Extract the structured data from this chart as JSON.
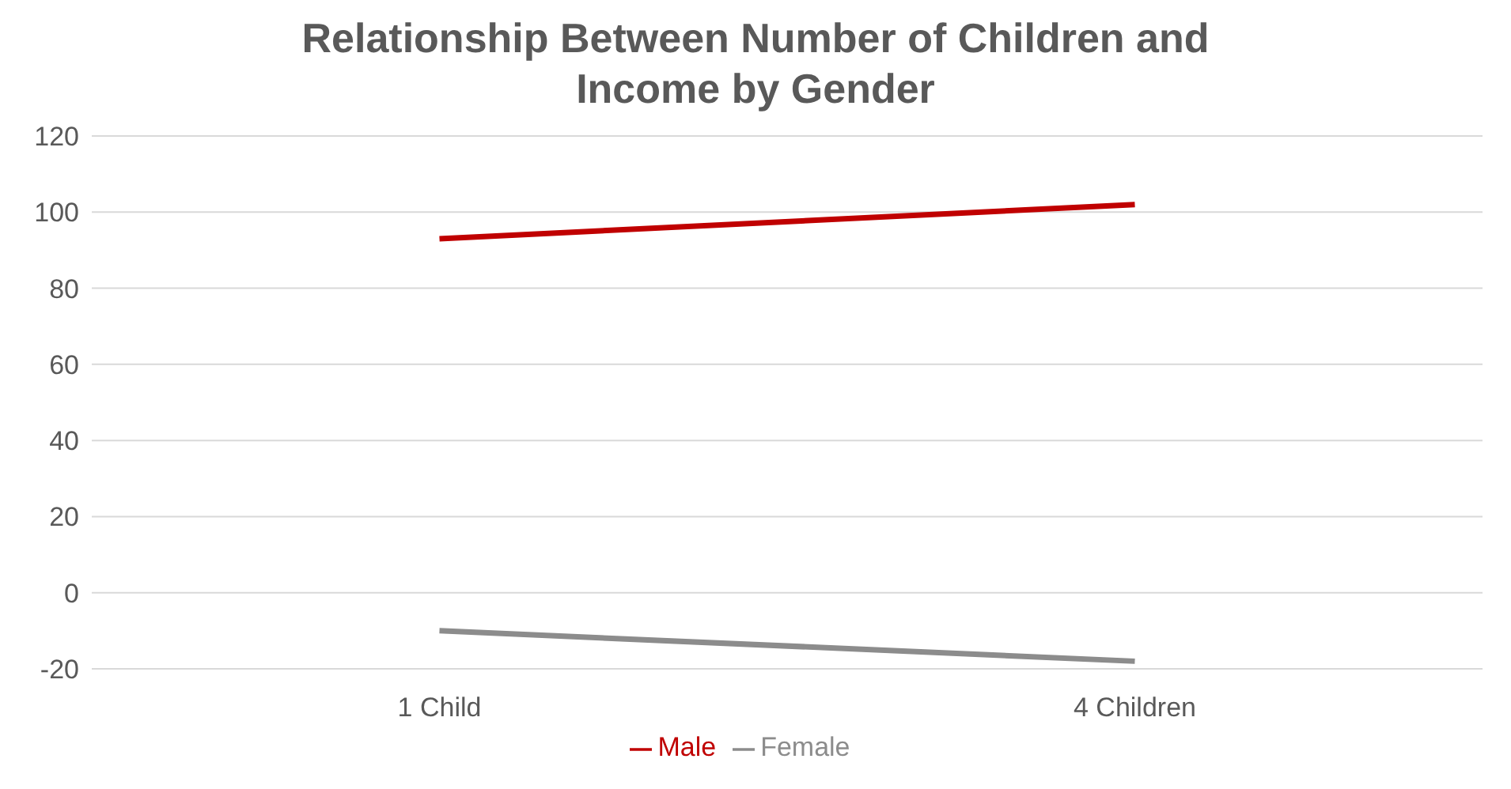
{
  "chart_data": {
    "type": "line",
    "title": "Relationship Between Number of Children and Income by Gender",
    "categories": [
      "1 Child",
      "4 Children"
    ],
    "series": [
      {
        "name": "Male",
        "color": "#c00000",
        "values": [
          93,
          102
        ]
      },
      {
        "name": "Female",
        "color": "#8c8c8c",
        "values": [
          -10,
          -18
        ]
      }
    ],
    "ylim": [
      -20,
      120
    ],
    "yticks": [
      -20,
      0,
      20,
      40,
      60,
      80,
      100,
      120
    ],
    "grid": "y",
    "legend": "bottom",
    "marker": "none",
    "line_style": "solid"
  }
}
